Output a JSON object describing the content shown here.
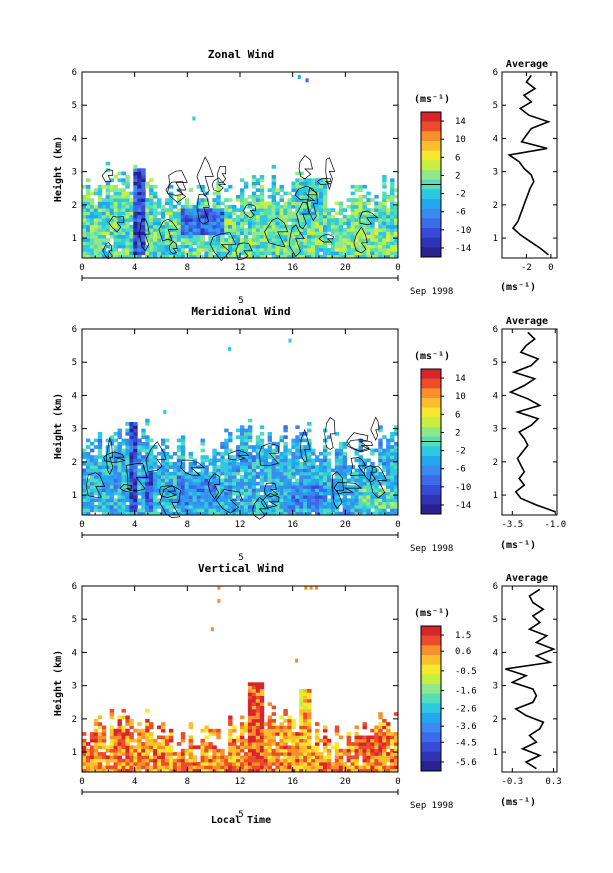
{
  "chart_data": [
    {
      "type": "heatmap",
      "title": "Zonal Wind",
      "ylabel": "Height (km)",
      "x_ticks": [
        "0",
        "4",
        "8",
        "12",
        "16",
        "20",
        "0"
      ],
      "y_ticks": [
        "1",
        "2",
        "3",
        "4",
        "5",
        "6"
      ],
      "date_label": "Sep 1998",
      "day_label": "5",
      "colorbar": {
        "unit": "(ms⁻¹)",
        "tick_labels": [
          "14",
          "10",
          "6",
          "2",
          "-2",
          "-6",
          "-10",
          "-14"
        ],
        "colors": [
          "#d7262b",
          "#ee4b2b",
          "#f7902c",
          "#fcbf2c",
          "#f6e72f",
          "#c8ef3d",
          "#8fe88b",
          "#55ddb9",
          "#2ec8e0",
          "#22a8ef",
          "#3a8af0",
          "#3c6ae8",
          "#3a4ad8",
          "#2f33b5",
          "#26228f"
        ]
      },
      "field": {
        "hour_range": [
          0,
          24
        ],
        "height_range": [
          0.4,
          6
        ],
        "base_level": 0.05,
        "top_km": 2.55,
        "patches": [
          {
            "x0": 3.8,
            "x1": 4.5,
            "y0": 0.5,
            "y1": 3.05,
            "v": -11
          },
          {
            "x0": 7.5,
            "x1": 10.5,
            "y0": 1.0,
            "y1": 1.9,
            "v": -8
          },
          {
            "x0": 13.5,
            "x1": 18,
            "y0": 0.6,
            "y1": 1.3,
            "v": 1
          },
          {
            "x0": 16,
            "x1": 18.5,
            "y0": 1.6,
            "y1": 2.8,
            "v": -1
          },
          {
            "x0": 19,
            "x1": 24,
            "y0": 0.6,
            "y1": 1.2,
            "v": 2
          }
        ],
        "specks": [
          {
            "x": 17.1,
            "y": 5.75,
            "v": -8
          },
          {
            "x": 8.5,
            "y": 4.6,
            "v": -3
          },
          {
            "x": 16.5,
            "y": 5.85,
            "v": -5
          }
        ],
        "contour": true
      },
      "profile": {
        "title": "Average",
        "unit": "(ms⁻¹)",
        "x_range": [
          -4,
          0.5
        ],
        "x_ticks": [
          -2,
          0
        ],
        "x_tick_labels": [
          "-2",
          "0"
        ],
        "heights": [
          0.5,
          0.7,
          0.9,
          1.1,
          1.3,
          1.5,
          1.7,
          1.9,
          2.1,
          2.3,
          2.5,
          2.7,
          2.9,
          3.1,
          3.3,
          3.5,
          3.7,
          3.9,
          4.1,
          4.3,
          4.5,
          4.7,
          4.9,
          5.1,
          5.3,
          5.5,
          5.7,
          5.9
        ],
        "values": [
          -0.2,
          -0.9,
          -1.7,
          -2.5,
          -3.1,
          -2.7,
          -2.5,
          -2.3,
          -2.1,
          -1.9,
          -1.7,
          -1.4,
          -1.6,
          -2.2,
          -2.6,
          -3.4,
          -0.3,
          -2.4,
          -2.0,
          -1.6,
          -0.2,
          -1.8,
          -2.5,
          -1.6,
          -2.2,
          -1.3,
          -2.0,
          -1.6
        ]
      }
    },
    {
      "type": "heatmap",
      "title": "Meridional Wind",
      "ylabel": "Height (km)",
      "x_ticks": [
        "0",
        "4",
        "8",
        "12",
        "16",
        "20",
        "0"
      ],
      "y_ticks": [
        "1",
        "2",
        "3",
        "4",
        "5",
        "6"
      ],
      "date_label": "Sep 1998",
      "day_label": "5",
      "colorbar": {
        "unit": "(ms⁻¹)",
        "tick_labels": [
          "14",
          "10",
          "6",
          "2",
          "-2",
          "-6",
          "-10",
          "-14"
        ],
        "colors": [
          "#d7262b",
          "#ee4b2b",
          "#f7902c",
          "#fcbf2c",
          "#f6e72f",
          "#c8ef3d",
          "#8fe88b",
          "#55ddb9",
          "#2ec8e0",
          "#22a8ef",
          "#3a8af0",
          "#3c6ae8",
          "#3a4ad8",
          "#2f33b5",
          "#26228f"
        ]
      },
      "field": {
        "hour_range": [
          0,
          24
        ],
        "height_range": [
          0.4,
          6
        ],
        "base_level": -3.5,
        "top_km": 2.7,
        "patches": [
          {
            "x0": 3.4,
            "x1": 3.9,
            "y0": 0.5,
            "y1": 3.2,
            "v": -11
          },
          {
            "x0": 4.7,
            "x1": 5.2,
            "y0": 0.5,
            "y1": 1.7,
            "v": -10
          },
          {
            "x0": 7,
            "x1": 10,
            "y0": 0.7,
            "y1": 1.6,
            "v": -6
          },
          {
            "x0": 15.5,
            "x1": 18.5,
            "y0": 0.6,
            "y1": 1.3,
            "v": -6
          },
          {
            "x0": 21,
            "x1": 24,
            "y0": 0.6,
            "y1": 1.1,
            "v": 0
          }
        ],
        "specks": [
          {
            "x": 11.2,
            "y": 5.4,
            "v": -3
          },
          {
            "x": 6.3,
            "y": 3.5,
            "v": -3
          },
          {
            "x": 15.8,
            "y": 5.65,
            "v": -3
          }
        ],
        "contour": true
      },
      "profile": {
        "title": "Average",
        "unit": "(ms⁻¹)",
        "x_range": [
          -4.1,
          -0.9
        ],
        "x_ticks": [
          -3.5,
          -1.0
        ],
        "x_tick_labels": [
          "-3.5",
          "-1.0"
        ],
        "heights": [
          0.5,
          0.7,
          0.9,
          1.1,
          1.3,
          1.5,
          1.7,
          1.9,
          2.1,
          2.3,
          2.5,
          2.7,
          2.9,
          3.1,
          3.3,
          3.5,
          3.7,
          3.9,
          4.1,
          4.3,
          4.5,
          4.7,
          4.9,
          5.1,
          5.3,
          5.5,
          5.7,
          5.9
        ],
        "values": [
          -1.0,
          -2.1,
          -3.0,
          -3.3,
          -2.8,
          -3.1,
          -2.8,
          -3.0,
          -3.2,
          -2.9,
          -2.6,
          -2.8,
          -3.1,
          -2.4,
          -2.0,
          -3.2,
          -1.9,
          -2.6,
          -3.6,
          -2.8,
          -2.2,
          -3.4,
          -2.4,
          -2.0,
          -3.0,
          -2.7,
          -2.2,
          -2.6
        ]
      }
    },
    {
      "type": "heatmap",
      "title": "Vertical Wind",
      "ylabel": "Height (km)",
      "xlabel": "Local Time",
      "x_ticks": [
        "0",
        "4",
        "8",
        "12",
        "16",
        "20",
        "0"
      ],
      "y_ticks": [
        "1",
        "2",
        "3",
        "4",
        "5",
        "6"
      ],
      "date_label": "Sep 1998",
      "day_label": "5",
      "colorbar": {
        "unit": "(ms⁻¹)",
        "tick_labels": [
          "1.5",
          "0.6",
          "-0.5",
          "-1.6",
          "-2.6",
          "-3.6",
          "-4.5",
          "-5.6"
        ],
        "colors": [
          "#d7262b",
          "#ee4b2b",
          "#f7902c",
          "#fcbf2c",
          "#f6e72f",
          "#c8ef3d",
          "#8fe88b",
          "#55ddb9",
          "#2ec8e0",
          "#22a8ef",
          "#3a8af0",
          "#3c6ae8",
          "#3a4ad8",
          "#2f33b5",
          "#26228f"
        ]
      },
      "field": {
        "hour_range": [
          0,
          24
        ],
        "height_range": [
          0.4,
          6
        ],
        "base_level": 0.6,
        "top_km": 1.75,
        "patches": [
          {
            "x0": 12.6,
            "x1": 13.6,
            "y0": 0.5,
            "y1": 3.1,
            "v": 1.3
          },
          {
            "x0": 16.4,
            "x1": 17.2,
            "y0": 0.5,
            "y1": 2.9,
            "v": 0.2
          },
          {
            "x0": 20.5,
            "x1": 22.5,
            "y0": 0.8,
            "y1": 1.5,
            "v": 1.2
          }
        ],
        "specks": [
          {
            "x": 10.4,
            "y": 5.95,
            "v": 0.4
          },
          {
            "x": 10.4,
            "y": 5.55,
            "v": 0.4
          },
          {
            "x": 9.9,
            "y": 4.7,
            "v": 0.4
          },
          {
            "x": 16.3,
            "y": 3.75,
            "v": 0.4
          },
          {
            "x": 17.0,
            "y": 5.95,
            "v": 0.6
          },
          {
            "x": 17.4,
            "y": 5.95,
            "v": 0.9
          },
          {
            "x": 17.8,
            "y": 5.95,
            "v": 0.6
          }
        ],
        "contour": false
      },
      "profile": {
        "title": "Average",
        "unit": "(ms⁻¹)",
        "x_range": [
          -0.45,
          0.35
        ],
        "x_ticks": [
          -0.3,
          0.3
        ],
        "x_tick_labels": [
          "-0.3",
          "0.3"
        ],
        "heights": [
          0.5,
          0.7,
          0.9,
          1.1,
          1.3,
          1.5,
          1.7,
          1.9,
          2.1,
          2.3,
          2.5,
          2.7,
          2.9,
          3.1,
          3.3,
          3.5,
          3.7,
          3.9,
          4.1,
          4.3,
          4.5,
          4.7,
          4.9,
          5.1,
          5.3,
          5.5,
          5.7,
          5.9
        ],
        "values": [
          0.05,
          -0.1,
          0.1,
          -0.15,
          0.05,
          -0.05,
          0.1,
          0.15,
          -0.1,
          -0.25,
          0.0,
          0.05,
          0.0,
          -0.3,
          -0.1,
          -0.4,
          0.25,
          0.05,
          0.3,
          0.05,
          0.2,
          -0.05,
          0.1,
          0.0,
          0.15,
          0.0,
          -0.05,
          0.1
        ]
      }
    }
  ]
}
